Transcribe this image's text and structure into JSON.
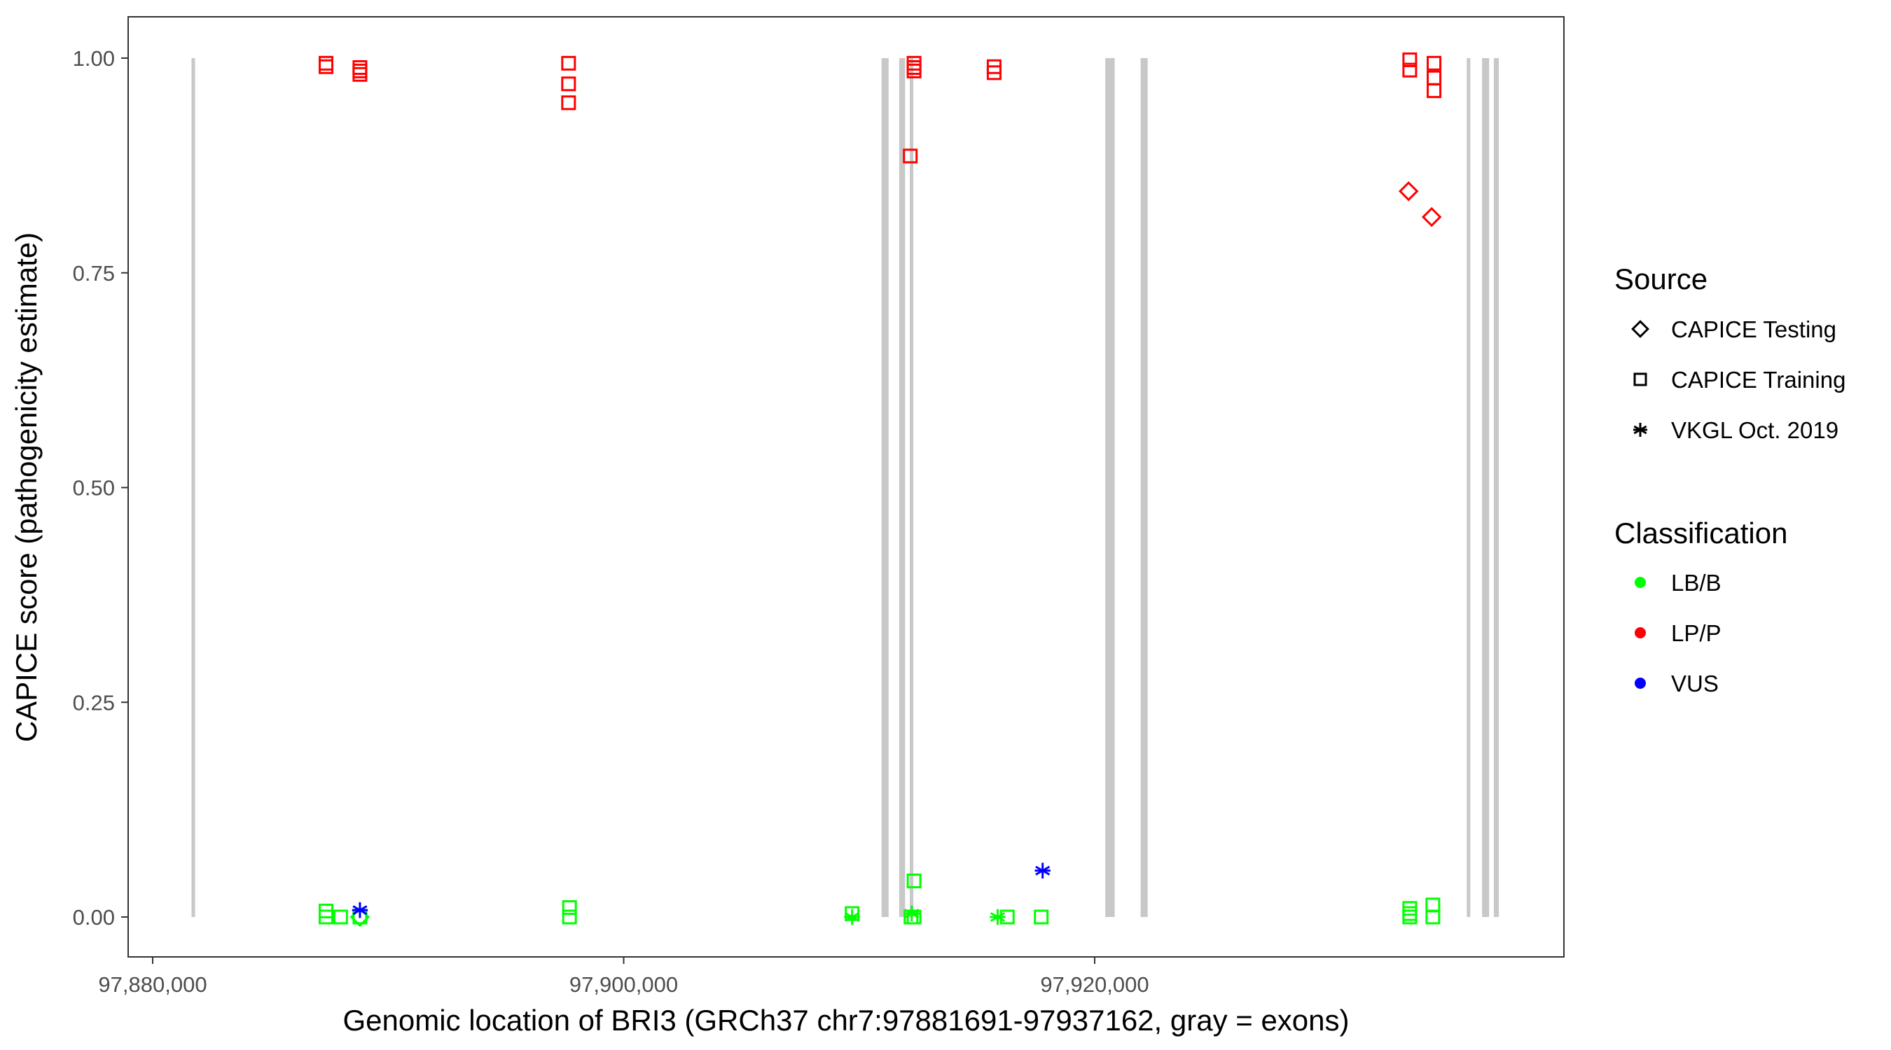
{
  "chart_data": {
    "type": "scatter",
    "xlabel": "Genomic location of BRI3 (GRCh37 chr7:97881691-97937162, gray = exons)",
    "ylabel": "CAPICE score (pathogenicity estimate)",
    "xlim": [
      97879000,
      97938500
    ],
    "ylim": [
      -0.045,
      1.045
    ],
    "x_ticks": [
      97880000,
      97900000,
      97920000
    ],
    "x_tick_labels": [
      "97,880,000",
      "97,900,000",
      "97,920,000"
    ],
    "y_ticks": [
      0,
      0.25,
      0.5,
      0.75,
      1.0
    ],
    "y_tick_labels": [
      "0.00",
      "0.25",
      "0.50",
      "0.75",
      "1.00"
    ],
    "grid": false,
    "exon_color": "#c8c8c8",
    "exons": [
      [
        97881650,
        97881800
      ],
      [
        97910950,
        97911250
      ],
      [
        97911700,
        97911950
      ],
      [
        97912150,
        97912300
      ],
      [
        97920450,
        97920850
      ],
      [
        97921950,
        97922250
      ],
      [
        97935800,
        97935950
      ],
      [
        97936450,
        97936750
      ],
      [
        97936950,
        97937162
      ]
    ],
    "legend": {
      "placement": "right",
      "source_title": "Source",
      "sources": [
        {
          "label": "CAPICE Testing",
          "shape": "diamond"
        },
        {
          "label": "CAPICE Training",
          "shape": "square"
        },
        {
          "label": "VKGL Oct. 2019",
          "shape": "asterisk"
        }
      ],
      "classification_title": "Classification",
      "classes": [
        {
          "label": "LB/B",
          "color": "#00ff00"
        },
        {
          "label": "LP/P",
          "color": "#ff0000"
        },
        {
          "label": "VUS",
          "color": "#0000ff"
        }
      ]
    },
    "points": [
      {
        "x": 97887360,
        "y": 0.994,
        "source": "CAPICE Training",
        "class": "LP/P"
      },
      {
        "x": 97887360,
        "y": 0.99,
        "source": "CAPICE Training",
        "class": "LP/P"
      },
      {
        "x": 97888800,
        "y": 0.989,
        "source": "CAPICE Training",
        "class": "LP/P"
      },
      {
        "x": 97888800,
        "y": 0.985,
        "source": "CAPICE Training",
        "class": "LP/P"
      },
      {
        "x": 97888800,
        "y": 0.981,
        "source": "CAPICE Training",
        "class": "LP/P"
      },
      {
        "x": 97897660,
        "y": 0.994,
        "source": "CAPICE Training",
        "class": "LP/P"
      },
      {
        "x": 97897660,
        "y": 0.97,
        "source": "CAPICE Training",
        "class": "LP/P"
      },
      {
        "x": 97897660,
        "y": 0.948,
        "source": "CAPICE Training",
        "class": "LP/P"
      },
      {
        "x": 97912330,
        "y": 0.994,
        "source": "CAPICE Training",
        "class": "LP/P"
      },
      {
        "x": 97912330,
        "y": 0.989,
        "source": "CAPICE Training",
        "class": "LP/P"
      },
      {
        "x": 97912330,
        "y": 0.985,
        "source": "CAPICE Training",
        "class": "LP/P"
      },
      {
        "x": 97912170,
        "y": 0.886,
        "source": "CAPICE Training",
        "class": "LP/P"
      },
      {
        "x": 97915730,
        "y": 0.99,
        "source": "CAPICE Training",
        "class": "LP/P"
      },
      {
        "x": 97915730,
        "y": 0.983,
        "source": "CAPICE Training",
        "class": "LP/P"
      },
      {
        "x": 97933380,
        "y": 0.998,
        "source": "CAPICE Training",
        "class": "LP/P"
      },
      {
        "x": 97933380,
        "y": 0.986,
        "source": "CAPICE Training",
        "class": "LP/P"
      },
      {
        "x": 97934410,
        "y": 0.994,
        "source": "CAPICE Training",
        "class": "LP/P"
      },
      {
        "x": 97934410,
        "y": 0.977,
        "source": "CAPICE Training",
        "class": "LP/P"
      },
      {
        "x": 97934410,
        "y": 0.962,
        "source": "CAPICE Training",
        "class": "LP/P"
      },
      {
        "x": 97933330,
        "y": 0.845,
        "source": "CAPICE Testing",
        "class": "LP/P"
      },
      {
        "x": 97934310,
        "y": 0.815,
        "source": "CAPICE Testing",
        "class": "LP/P"
      },
      {
        "x": 97887360,
        "y": 0.007,
        "source": "CAPICE Training",
        "class": "LB/B"
      },
      {
        "x": 97887360,
        "y": 0.0,
        "source": "CAPICE Training",
        "class": "LB/B"
      },
      {
        "x": 97887980,
        "y": 0.0,
        "source": "CAPICE Training",
        "class": "LB/B"
      },
      {
        "x": 97888800,
        "y": 0.0,
        "source": "CAPICE Training",
        "class": "LB/B"
      },
      {
        "x": 97888800,
        "y": 0.0,
        "source": "CAPICE Testing",
        "class": "LB/B"
      },
      {
        "x": 97897700,
        "y": 0.011,
        "source": "CAPICE Training",
        "class": "LB/B"
      },
      {
        "x": 97897700,
        "y": 0.0,
        "source": "CAPICE Training",
        "class": "LB/B"
      },
      {
        "x": 97909700,
        "y": 0.004,
        "source": "CAPICE Training",
        "class": "LB/B"
      },
      {
        "x": 97909700,
        "y": 0.0,
        "source": "VKGL Oct. 2019",
        "class": "LB/B"
      },
      {
        "x": 97912330,
        "y": 0.042,
        "source": "CAPICE Training",
        "class": "LB/B"
      },
      {
        "x": 97912330,
        "y": 0.0,
        "source": "CAPICE Training",
        "class": "LB/B"
      },
      {
        "x": 97912200,
        "y": 0.0,
        "source": "CAPICE Training",
        "class": "LB/B"
      },
      {
        "x": 97912230,
        "y": 0.004,
        "source": "VKGL Oct. 2019",
        "class": "LB/B"
      },
      {
        "x": 97915880,
        "y": 0.0,
        "source": "VKGL Oct. 2019",
        "class": "LB/B"
      },
      {
        "x": 97916290,
        "y": 0.0,
        "source": "CAPICE Training",
        "class": "LB/B"
      },
      {
        "x": 97917730,
        "y": 0.0,
        "source": "CAPICE Training",
        "class": "LB/B"
      },
      {
        "x": 97933380,
        "y": 0.01,
        "source": "CAPICE Training",
        "class": "LB/B"
      },
      {
        "x": 97933380,
        "y": 0.004,
        "source": "CAPICE Training",
        "class": "LB/B"
      },
      {
        "x": 97933380,
        "y": 0.0,
        "source": "CAPICE Training",
        "class": "LB/B"
      },
      {
        "x": 97934360,
        "y": 0.014,
        "source": "CAPICE Training",
        "class": "LB/B"
      },
      {
        "x": 97934360,
        "y": 0.0,
        "source": "CAPICE Training",
        "class": "LB/B"
      },
      {
        "x": 97888800,
        "y": 0.008,
        "source": "VKGL Oct. 2019",
        "class": "VUS"
      },
      {
        "x": 97917790,
        "y": 0.054,
        "source": "VKGL Oct. 2019",
        "class": "VUS"
      }
    ]
  }
}
